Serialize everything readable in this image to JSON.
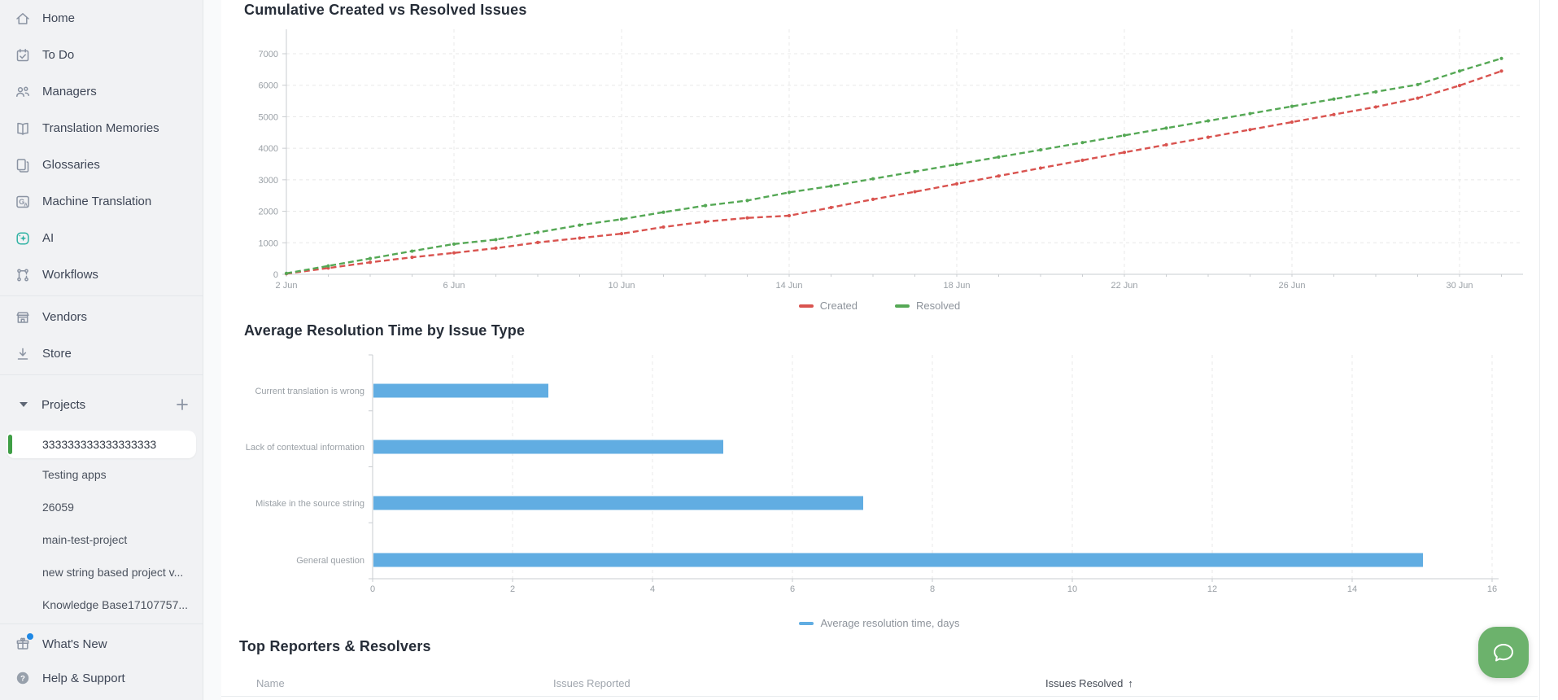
{
  "sidebar": {
    "nav_sections": [
      [
        {
          "icon": "home-icon",
          "label": "Home"
        },
        {
          "icon": "todo-icon",
          "label": "To Do"
        },
        {
          "icon": "managers-icon",
          "label": "Managers"
        },
        {
          "icon": "translation-memories-icon",
          "label": "Translation Memories"
        },
        {
          "icon": "glossaries-icon",
          "label": "Glossaries"
        },
        {
          "icon": "machine-translation-icon",
          "label": "Machine Translation"
        },
        {
          "icon": "ai-icon",
          "label": "AI"
        },
        {
          "icon": "workflows-icon",
          "label": "Workflows"
        }
      ],
      [
        {
          "icon": "vendors-icon",
          "label": "Vendors"
        },
        {
          "icon": "store-icon",
          "label": "Store"
        }
      ]
    ],
    "projects": {
      "header_label": "Projects",
      "selected_index": 0,
      "items": [
        "333333333333333333",
        "Testing apps",
        "26059",
        "main-test-project",
        "new string based project v...",
        "Knowledge Base17107757..."
      ]
    },
    "footer_items": [
      {
        "icon": "whats-new-icon",
        "label": "What's New",
        "has_badge": true
      },
      {
        "icon": "help-icon",
        "label": "Help & Support",
        "has_badge": false
      }
    ]
  },
  "chart_data": [
    {
      "type": "line",
      "title": "Cumulative Created vs Resolved Issues",
      "x_tick_labels": [
        "2 Jun",
        "6 Jun",
        "10 Jun",
        "14 Jun",
        "18 Jun",
        "22 Jun",
        "26 Jun",
        "30 Jun"
      ],
      "x_tick_every": 4,
      "ylim": [
        0,
        7000
      ],
      "ytick_step": 1000,
      "grid": "dashed",
      "legend_position": "bottom",
      "series": [
        {
          "name": "Created",
          "color": "#d9534f",
          "values": [
            20,
            200,
            380,
            540,
            680,
            830,
            1010,
            1150,
            1290,
            1500,
            1670,
            1790,
            1860,
            2120,
            2380,
            2620,
            2870,
            3120,
            3370,
            3620,
            3870,
            4110,
            4350,
            4590,
            4830,
            5070,
            5310,
            5590,
            5990,
            6450
          ]
        },
        {
          "name": "Resolved",
          "color": "#55a855",
          "values": [
            30,
            265,
            500,
            735,
            960,
            1100,
            1330,
            1560,
            1750,
            1970,
            2180,
            2340,
            2600,
            2800,
            3030,
            3260,
            3490,
            3720,
            3950,
            4180,
            4410,
            4640,
            4870,
            5100,
            5330,
            5560,
            5790,
            6020,
            6450,
            6850
          ]
        }
      ]
    },
    {
      "type": "bar",
      "orientation": "horizontal",
      "title": "Average Resolution Time by Issue Type",
      "categories": [
        "Current translation is wrong",
        "Lack of contextual information",
        "Mistake in the source string",
        "General question"
      ],
      "values": [
        2.5,
        5,
        7,
        15
      ],
      "xlim": [
        0,
        16
      ],
      "xtick_step": 2,
      "bar_color": "#61ade2",
      "grid": "dashed",
      "legend": [
        {
          "name": "Average resolution time, days",
          "color": "#61ade2"
        }
      ]
    }
  ],
  "table": {
    "title": "Top Reporters & Resolvers",
    "columns": [
      {
        "label": "Name",
        "sorted": false
      },
      {
        "label": "Issues Reported",
        "sorted": false
      },
      {
        "label": "Issues Resolved",
        "sorted": true,
        "sort_dir": "asc"
      }
    ],
    "rows": []
  },
  "icons": {
    "chat": "chat-bubble-icon",
    "sort_asc_glyph": "↑"
  },
  "colors": {
    "created_line": "#d9534f",
    "resolved_line": "#55a855",
    "bar_blue": "#61ade2",
    "selected_project_bar": "#3f9e45",
    "ai_accent": "#2fb2a3",
    "whats_new_badge": "#1e88e5",
    "chat_button": "#6cb26c",
    "sidebar_bg": "#f1f2f4"
  }
}
